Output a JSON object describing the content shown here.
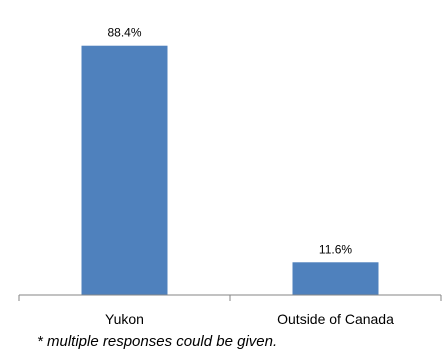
{
  "chart_data": {
    "type": "bar",
    "categories": [
      "Yukon",
      "Outside of Canada"
    ],
    "values": [
      88.4,
      11.6
    ],
    "data_labels": [
      "88.4%",
      "11.6%"
    ],
    "title": "",
    "xlabel": "",
    "ylabel": "",
    "ylim": [
      0,
      100
    ],
    "grid": false,
    "legend": "none",
    "bar_color": "#4F81BD",
    "footnote": "* multiple responses could be given."
  }
}
